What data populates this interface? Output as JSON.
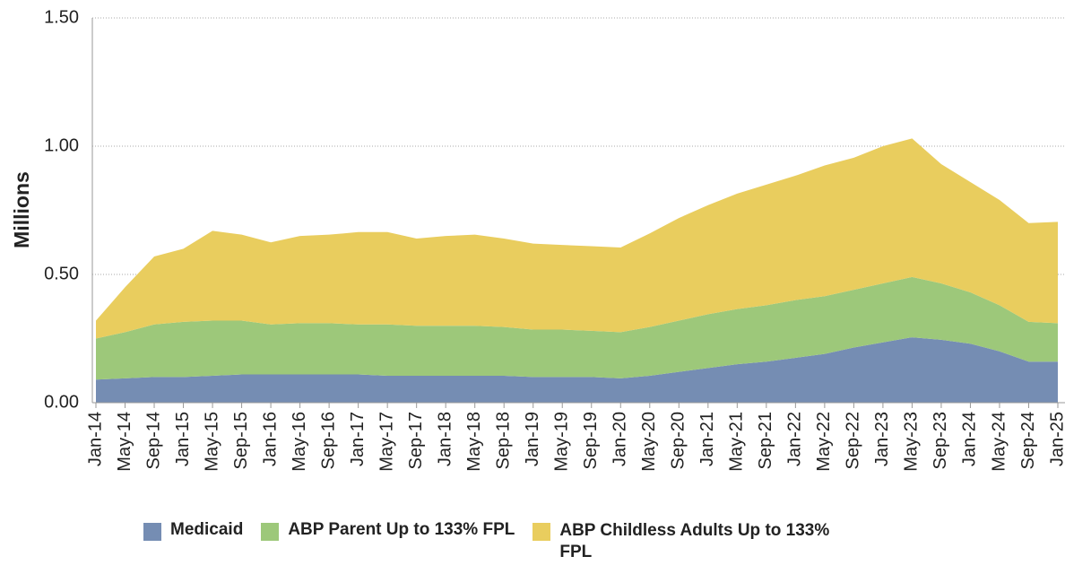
{
  "chart_data": {
    "type": "stacked_area",
    "y_label": "Millions",
    "categories": [
      "Jan-14",
      "May-14",
      "Sep-14",
      "Jan-15",
      "May-15",
      "Sep-15",
      "Jan-16",
      "May-16",
      "Sep-16",
      "Jan-17",
      "May-17",
      "Sep-17",
      "Jan-18",
      "May-18",
      "Sep-18",
      "Jan-19",
      "May-19",
      "Sep-19",
      "Jan-20",
      "May-20",
      "Sep-20",
      "Jan-21",
      "May-21",
      "Sep-21",
      "Jan-22",
      "May-22",
      "Sep-22",
      "Jan-23",
      "May-23",
      "Sep-23",
      "Jan-24",
      "May-24",
      "Sep-24",
      "Jan-25"
    ],
    "series": [
      {
        "name": "Medicaid",
        "color": "#758db3",
        "values": [
          0.09,
          0.095,
          0.1,
          0.1,
          0.105,
          0.11,
          0.11,
          0.11,
          0.11,
          0.11,
          0.105,
          0.105,
          0.105,
          0.105,
          0.105,
          0.1,
          0.1,
          0.1,
          0.095,
          0.105,
          0.12,
          0.135,
          0.15,
          0.16,
          0.175,
          0.19,
          0.215,
          0.235,
          0.255,
          0.245,
          0.23,
          0.2,
          0.16,
          0.16
        ]
      },
      {
        "name": "ABP Parent Up to 133% FPL",
        "color": "#9dc87a",
        "values": [
          0.16,
          0.18,
          0.205,
          0.215,
          0.215,
          0.21,
          0.195,
          0.2,
          0.2,
          0.195,
          0.2,
          0.195,
          0.195,
          0.195,
          0.19,
          0.185,
          0.185,
          0.18,
          0.18,
          0.19,
          0.2,
          0.21,
          0.215,
          0.22,
          0.225,
          0.225,
          0.225,
          0.23,
          0.235,
          0.22,
          0.2,
          0.18,
          0.155,
          0.15
        ]
      },
      {
        "name": "ABP Childless Adults Up to 133% FPL",
        "color": "#e9cd5e",
        "values": [
          0.07,
          0.175,
          0.265,
          0.285,
          0.35,
          0.335,
          0.32,
          0.34,
          0.345,
          0.36,
          0.36,
          0.34,
          0.35,
          0.355,
          0.345,
          0.335,
          0.33,
          0.33,
          0.33,
          0.365,
          0.4,
          0.425,
          0.45,
          0.47,
          0.485,
          0.51,
          0.515,
          0.535,
          0.54,
          0.465,
          0.43,
          0.41,
          0.385,
          0.395
        ]
      }
    ],
    "ylim": [
      0,
      1.5
    ],
    "yticks": [
      {
        "value": 0,
        "label": "0.00"
      },
      {
        "value": 0.5,
        "label": "0.50"
      },
      {
        "value": 1,
        "label": "1.00"
      },
      {
        "value": 1.5,
        "label": "1.50"
      }
    ],
    "grid": true,
    "legend": "bottom"
  }
}
